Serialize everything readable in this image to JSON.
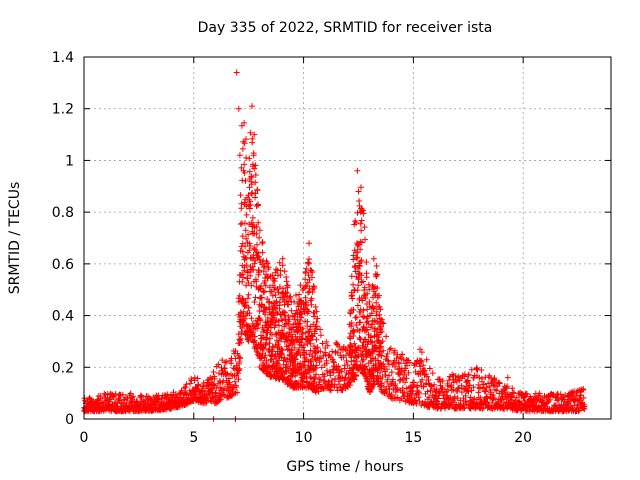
{
  "chart_data": {
    "type": "scatter",
    "title": "Day 335 of 2022, SRMTID for receiver ista",
    "xlabel": "GPS time / hours",
    "ylabel": "SRMTID / TECUs",
    "xlim": [
      0,
      24
    ],
    "ylim": [
      0,
      1.4
    ],
    "xticks": [
      0,
      5,
      10,
      15,
      20
    ],
    "yticks": [
      0,
      0.2,
      0.4,
      0.6,
      0.8,
      1.0,
      1.2,
      1.4
    ],
    "xtick_labels": [
      "0",
      "5",
      "10",
      "15",
      "20"
    ],
    "ytick_labels": [
      "0",
      "0.2",
      "0.4",
      "0.6",
      "0.8",
      "1",
      "1.2",
      "1.4"
    ],
    "grid": true,
    "marker": "+",
    "series": [
      {
        "name": "SRMTID",
        "color": "#ff0000",
        "envelope_note": "approximate upper/lower envelope of the dense point cloud (hours, TECU)",
        "envelope_x": [
          0,
          0.5,
          1,
          2,
          3,
          4,
          4.5,
          5,
          5.5,
          6,
          6.5,
          7,
          7.2,
          7.5,
          7.7,
          8,
          8.5,
          9,
          9.5,
          10,
          10.3,
          10.6,
          11,
          11.5,
          12,
          12.3,
          12.6,
          13,
          13.3,
          13.6,
          14,
          14.5,
          15,
          15.5,
          16,
          17,
          18,
          19,
          20,
          21,
          22,
          22.8
        ],
        "envelope_high": [
          0.08,
          0.09,
          0.1,
          0.1,
          0.09,
          0.1,
          0.12,
          0.17,
          0.14,
          0.2,
          0.25,
          0.3,
          1.19,
          1.05,
          1.2,
          0.75,
          0.55,
          0.62,
          0.45,
          0.55,
          0.68,
          0.4,
          0.3,
          0.3,
          0.28,
          0.75,
          0.95,
          0.5,
          0.62,
          0.38,
          0.3,
          0.25,
          0.22,
          0.27,
          0.15,
          0.18,
          0.2,
          0.14,
          0.1,
          0.1,
          0.1,
          0.12
        ],
        "envelope_low": [
          0.03,
          0.03,
          0.03,
          0.03,
          0.03,
          0.04,
          0.05,
          0.07,
          0.06,
          0.06,
          0.08,
          0.1,
          0.35,
          0.3,
          0.3,
          0.2,
          0.16,
          0.15,
          0.12,
          0.12,
          0.12,
          0.1,
          0.12,
          0.1,
          0.12,
          0.15,
          0.2,
          0.1,
          0.15,
          0.1,
          0.08,
          0.07,
          0.06,
          0.05,
          0.04,
          0.04,
          0.04,
          0.04,
          0.03,
          0.03,
          0.03,
          0.03
        ],
        "highlight_points": [
          {
            "x": 6.95,
            "y": 1.34
          },
          {
            "x": 7.05,
            "y": 1.2
          },
          {
            "x": 7.65,
            "y": 1.21
          },
          {
            "x": 7.1,
            "y": 1.02
          },
          {
            "x": 7.75,
            "y": 1.1
          },
          {
            "x": 12.45,
            "y": 0.96
          },
          {
            "x": 12.5,
            "y": 0.88
          },
          {
            "x": 12.6,
            "y": 0.8
          },
          {
            "x": 10.25,
            "y": 0.68
          },
          {
            "x": 13.2,
            "y": 0.62
          },
          {
            "x": 9.05,
            "y": 0.62
          },
          {
            "x": 15.3,
            "y": 0.27
          },
          {
            "x": 18.0,
            "y": 0.16
          },
          {
            "x": 19.3,
            "y": 0.16
          },
          {
            "x": 5.9,
            "y": 0.0
          },
          {
            "x": 6.9,
            "y": 0.0
          }
        ]
      }
    ]
  }
}
